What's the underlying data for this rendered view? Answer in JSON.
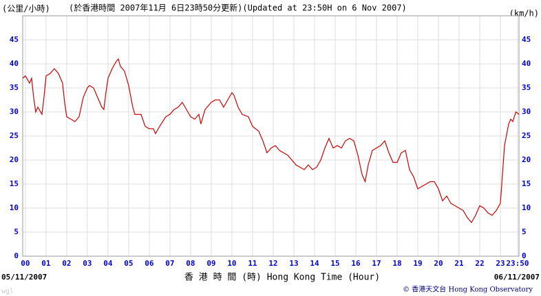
{
  "chart_data": {
    "type": "line",
    "title": "(於香港時間 2007年11月 6日23時50分更新)(Updated at 23:50H on 6 Nov 2007)",
    "y_label_left": "(公里/小時)",
    "y_label_right": "(km/h)",
    "x_label": "香 港 時 間 (時)  Hong Kong Time (Hour)",
    "start_date": "05/11/2007",
    "end_date": "06/11/2007",
    "credit": "© 香港天文台 Hong Kong Observatory",
    "corner_mark": "wgl",
    "color": "#cc0000",
    "grid": true,
    "xlim": [
      -0.13,
      23.9
    ],
    "ylim": [
      0,
      50
    ],
    "yticks": [
      0,
      5,
      10,
      15,
      20,
      25,
      30,
      35,
      40,
      45
    ],
    "xticks": [
      {
        "value": 0,
        "label": "00"
      },
      {
        "value": 1,
        "label": "01"
      },
      {
        "value": 2,
        "label": "02"
      },
      {
        "value": 3,
        "label": "03"
      },
      {
        "value": 4,
        "label": "04"
      },
      {
        "value": 5,
        "label": "05"
      },
      {
        "value": 6,
        "label": "06"
      },
      {
        "value": 7,
        "label": "07"
      },
      {
        "value": 8,
        "label": "08"
      },
      {
        "value": 9,
        "label": "09"
      },
      10,
      11,
      12,
      13,
      14,
      15,
      16,
      17,
      18,
      19,
      20,
      21,
      22,
      23,
      {
        "value": 23.833,
        "label": "23:50"
      }
    ],
    "x": [
      -0.13,
      0,
      0.2,
      0.3,
      0.4,
      0.5,
      0.6,
      0.8,
      0.9,
      1.0,
      1.2,
      1.4,
      1.6,
      1.8,
      1.9,
      2.0,
      2.2,
      2.4,
      2.6,
      2.8,
      3.0,
      3.1,
      3.3,
      3.5,
      3.7,
      3.8,
      3.9,
      4.0,
      4.2,
      4.4,
      4.5,
      4.6,
      4.8,
      5.0,
      5.2,
      5.3,
      5.6,
      5.8,
      6.0,
      6.2,
      6.3,
      6.5,
      6.8,
      7.0,
      7.2,
      7.4,
      7.6,
      7.8,
      8.0,
      8.2,
      8.4,
      8.5,
      8.7,
      9.0,
      9.2,
      9.4,
      9.6,
      9.8,
      10.0,
      10.1,
      10.3,
      10.5,
      10.8,
      11.0,
      11.3,
      11.5,
      11.7,
      11.9,
      12.1,
      12.3,
      12.5,
      12.7,
      12.9,
      13.1,
      13.3,
      13.5,
      13.7,
      13.9,
      14.1,
      14.3,
      14.5,
      14.7,
      14.9,
      15.1,
      15.3,
      15.5,
      15.7,
      15.9,
      16.1,
      16.3,
      16.45,
      16.6,
      16.8,
      17.0,
      17.2,
      17.4,
      17.6,
      17.8,
      18.0,
      18.2,
      18.4,
      18.6,
      18.8,
      19.0,
      19.2,
      19.4,
      19.6,
      19.8,
      20.0,
      20.2,
      20.4,
      20.6,
      20.8,
      21.0,
      21.2,
      21.4,
      21.6,
      21.8,
      22.0,
      22.2,
      22.4,
      22.6,
      22.8,
      23.0,
      23.1,
      23.2,
      23.4,
      23.5,
      23.6,
      23.75,
      23.9
    ],
    "values": [
      37,
      37.5,
      36,
      37,
      33,
      30,
      31,
      29.5,
      33,
      37.5,
      38,
      39,
      38,
      36,
      32,
      29,
      28.5,
      28,
      29,
      33,
      35,
      35.5,
      35,
      33,
      31,
      30.5,
      34,
      37,
      39,
      40.5,
      41,
      39.5,
      38.5,
      35.5,
      31,
      29.5,
      29.5,
      27,
      26.5,
      26.5,
      25.5,
      27,
      29,
      29.5,
      30.5,
      31,
      32,
      30.5,
      29,
      28.5,
      29.5,
      27.5,
      30.5,
      32,
      32.5,
      32.5,
      31,
      32.5,
      34,
      33.5,
      31,
      29.5,
      29,
      27,
      26,
      24,
      21.5,
      22.5,
      23,
      22,
      21.5,
      21,
      20,
      19,
      18.5,
      18,
      19,
      18,
      18.5,
      20,
      22.5,
      24.5,
      22.5,
      23,
      22.5,
      24,
      24.5,
      24,
      21,
      17,
      15.5,
      19,
      22,
      22.5,
      23,
      24,
      21.5,
      19.5,
      19.5,
      21.5,
      22,
      18,
      16.5,
      14,
      14.5,
      15,
      15.5,
      15.5,
      14,
      11.5,
      12.5,
      11,
      10.5,
      10,
      9.5,
      8,
      7,
      8.5,
      10.5,
      10,
      9,
      8.5,
      9.5,
      11,
      17,
      23,
      27.5,
      28.5,
      28,
      30,
      29.5
    ]
  }
}
